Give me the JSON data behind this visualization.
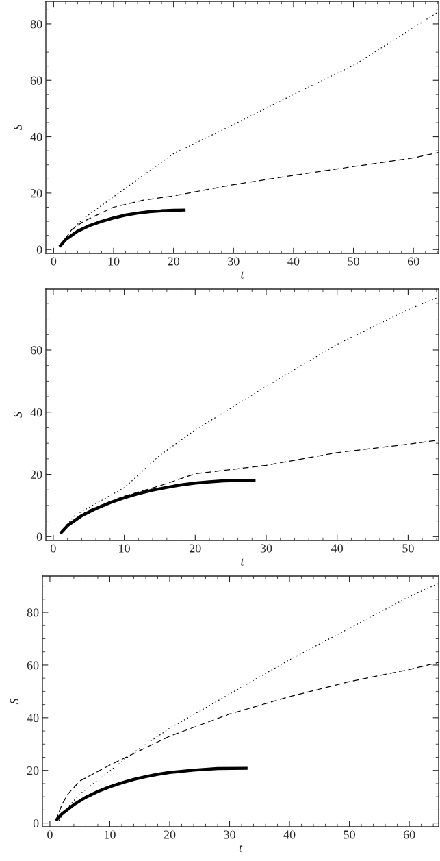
{
  "chart_data": [
    {
      "type": "line",
      "xlabel": "t",
      "ylabel": "S",
      "xlim": [
        -1.3,
        64.2
      ],
      "ylim": [
        -1.4,
        88
      ],
      "xticks": [
        0,
        10,
        20,
        30,
        40,
        50,
        60
      ],
      "yticks": [
        0,
        20,
        40,
        60,
        80
      ],
      "grid": false,
      "legend": false,
      "series": [
        {
          "color": "#000000",
          "line_style": "solid",
          "x": [
            1,
            2,
            4,
            6,
            8,
            10,
            12,
            14,
            16,
            18,
            20,
            22
          ],
          "values": [
            1,
            3.5,
            6.5,
            8.5,
            10,
            11.2,
            12.2,
            12.9,
            13.4,
            13.7,
            13.9,
            14
          ]
        },
        {
          "color": "#000000",
          "line_style": "dashed",
          "x": [
            1,
            3,
            5,
            10,
            15,
            20,
            30,
            40,
            50,
            60,
            64.2
          ],
          "values": [
            1,
            7,
            10,
            15,
            17.5,
            19,
            23,
            26.3,
            29.4,
            32.5,
            34.4
          ]
        },
        {
          "color": "#000000",
          "line_style": "dotted",
          "x": [
            1,
            3,
            5,
            10,
            20,
            30,
            40,
            50,
            64.2
          ],
          "values": [
            1,
            7,
            11,
            18.7,
            34,
            44.3,
            55,
            65.3,
            84.3
          ]
        }
      ]
    },
    {
      "type": "line",
      "xlabel": "t",
      "ylabel": "S",
      "xlim": [
        -1.05,
        54.3
      ],
      "ylim": [
        -1.25,
        79.6
      ],
      "xticks": [
        0,
        10,
        20,
        30,
        40,
        50
      ],
      "yticks": [
        0,
        20,
        40,
        60
      ],
      "grid": false,
      "legend": false,
      "series": [
        {
          "color": "#000000",
          "line_style": "solid",
          "x": [
            1,
            2,
            4,
            6,
            8,
            10,
            12,
            14,
            16,
            18,
            20,
            22,
            24,
            26,
            28.5
          ],
          "values": [
            1,
            3.5,
            6.7,
            9,
            10.9,
            12.5,
            13.8,
            14.9,
            15.8,
            16.6,
            17.2,
            17.6,
            17.9,
            18,
            18
          ]
        },
        {
          "color": "#000000",
          "line_style": "dashed",
          "x": [
            1,
            2,
            5,
            10,
            15,
            20,
            30,
            40,
            50,
            54.3
          ],
          "values": [
            1,
            4,
            8.5,
            13,
            16.3,
            20.2,
            22.9,
            27,
            29.7,
            31
          ]
        },
        {
          "color": "#000000",
          "line_style": "dotted",
          "x": [
            1,
            3,
            10,
            15,
            20,
            30,
            40,
            50,
            54.3
          ],
          "values": [
            1,
            6.8,
            15.7,
            26.1,
            34.3,
            48.3,
            61.8,
            73,
            77
          ]
        }
      ]
    },
    {
      "type": "line",
      "xlabel": "t",
      "ylabel": "S",
      "xlim": [
        -1.25,
        64.9
      ],
      "ylim": [
        -1.4,
        93.8
      ],
      "xticks": [
        0,
        10,
        20,
        30,
        40,
        50,
        60
      ],
      "yticks": [
        0,
        20,
        40,
        60,
        80
      ],
      "grid": false,
      "legend": false,
      "series": [
        {
          "color": "#000000",
          "line_style": "solid",
          "x": [
            1,
            2,
            4,
            6,
            8,
            10,
            12,
            14,
            16,
            18,
            20,
            24,
            28,
            33
          ],
          "values": [
            1,
            3.5,
            7,
            9.8,
            12,
            13.8,
            15.3,
            16.6,
            17.6,
            18.5,
            19.2,
            20.1,
            20.7,
            20.8
          ]
        },
        {
          "color": "#000000",
          "line_style": "dashed",
          "x": [
            1,
            2,
            3,
            5,
            10,
            15,
            20,
            30,
            40,
            50,
            60,
            64.9
          ],
          "values": [
            1,
            7,
            11,
            16,
            22,
            27.5,
            33,
            41.4,
            48,
            53.7,
            58.3,
            61
          ]
        },
        {
          "color": "#000000",
          "line_style": "dotted",
          "x": [
            1.5,
            3,
            5,
            10,
            14,
            20,
            30,
            40,
            50,
            60,
            64.9
          ],
          "values": [
            1,
            6,
            11,
            19.8,
            26.8,
            36,
            49,
            62,
            74,
            86,
            91
          ]
        }
      ]
    }
  ]
}
